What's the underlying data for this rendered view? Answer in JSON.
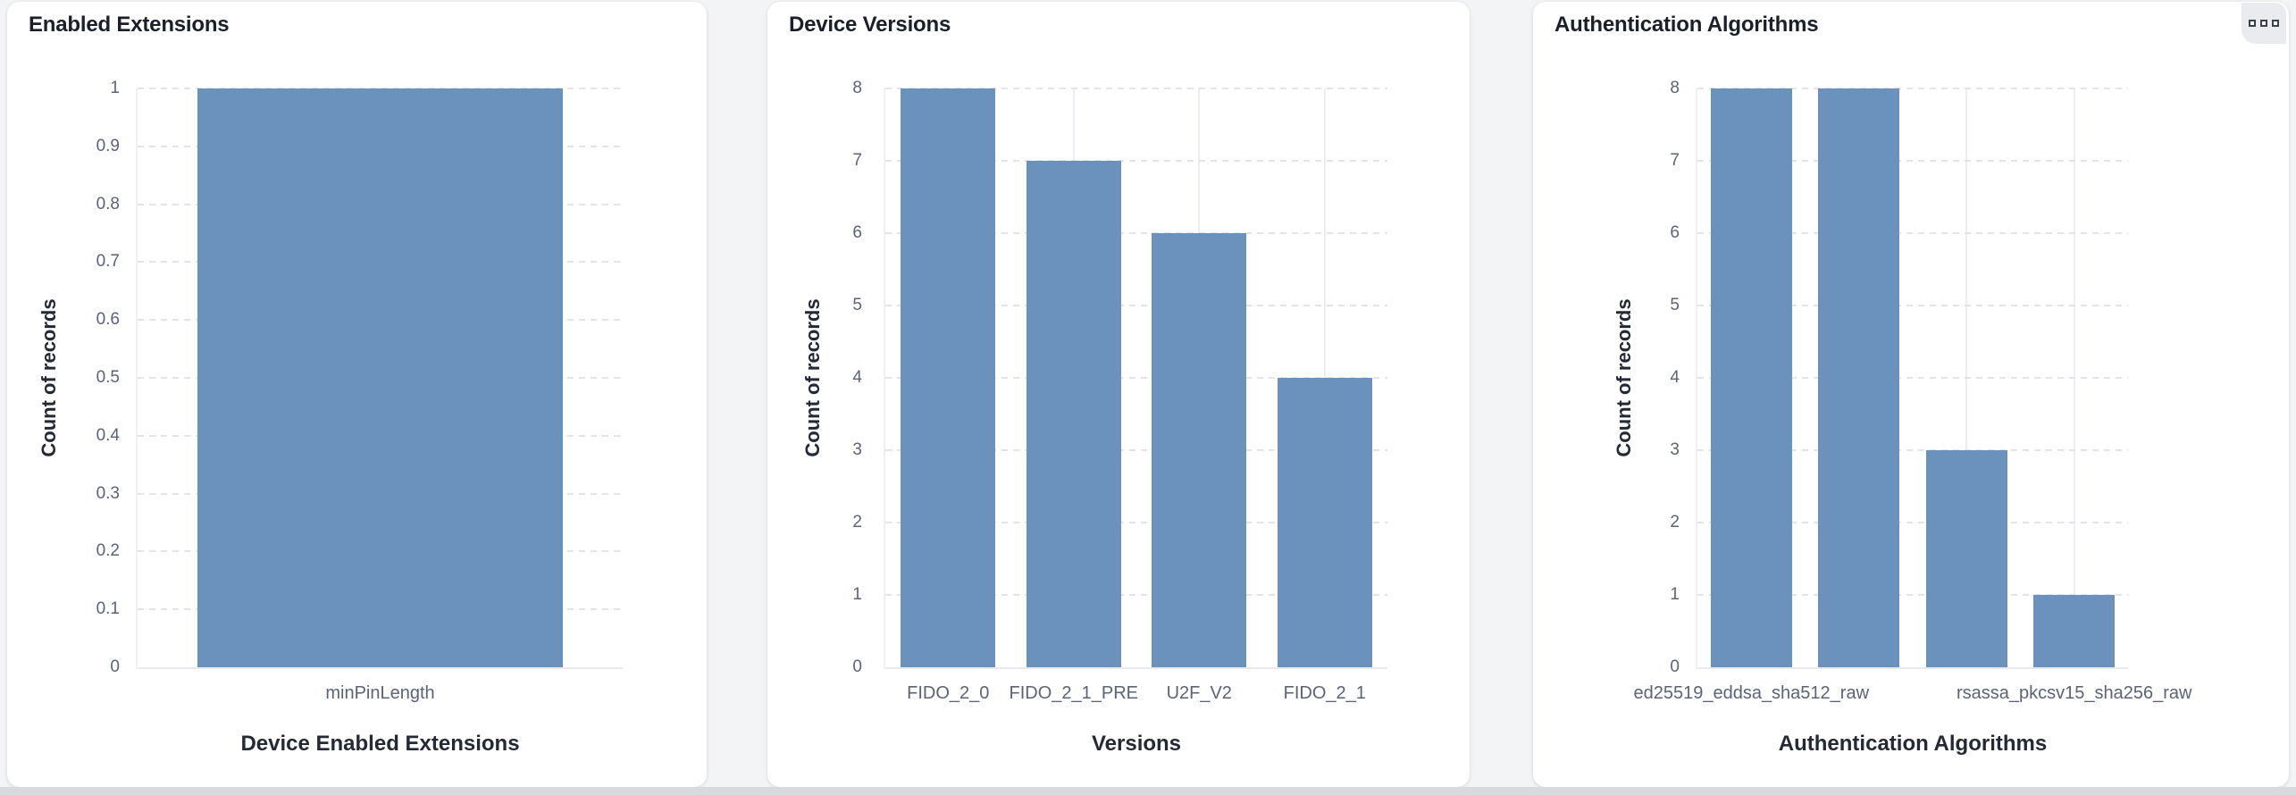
{
  "page": {
    "background_color": "#f3f4f6",
    "bottom_strip_color": "#d8dade"
  },
  "icons": {
    "panel_menu": "three-small-squares"
  },
  "cards": [
    {
      "title": "Enabled Extensions",
      "has_menu_icon": false
    },
    {
      "title": "Device Versions",
      "has_menu_icon": false
    },
    {
      "title": "Authentication Algorithms",
      "has_menu_icon": true
    }
  ],
  "chart_data": [
    {
      "type": "bar",
      "title": "Enabled Extensions",
      "categories": [
        "minPinLength"
      ],
      "values": [
        1
      ],
      "visible_x_tick_labels": [
        {
          "index": 0,
          "label": "minPinLength"
        }
      ],
      "xlabel": "Device Enabled Extensions",
      "ylabel": "Count of records",
      "ylim": [
        0,
        1
      ],
      "ytick_step": 0.1,
      "grid": true,
      "legend": "none",
      "bar_color": "#6b91bd"
    },
    {
      "type": "bar",
      "title": "Device Versions",
      "categories": [
        "FIDO_2_0",
        "FIDO_2_1_PRE",
        "U2F_V2",
        "FIDO_2_1"
      ],
      "values": [
        8,
        7,
        6,
        4
      ],
      "visible_x_tick_labels": [
        {
          "index": 0,
          "label": "FIDO_2_0"
        },
        {
          "index": 1,
          "label": "FIDO_2_1_PRE"
        },
        {
          "index": 2,
          "label": "U2F_V2"
        },
        {
          "index": 3,
          "label": "FIDO_2_1"
        }
      ],
      "xlabel": "Versions",
      "ylabel": "Count of records",
      "ylim": [
        0,
        8
      ],
      "ytick_step": 1,
      "grid": true,
      "legend": "none",
      "bar_color": "#6b91bd"
    },
    {
      "type": "bar",
      "title": "Authentication Algorithms",
      "bar_count": 4,
      "values": [
        8,
        8,
        3,
        1
      ],
      "visible_x_tick_labels": [
        {
          "index": 0,
          "label": "ed25519_eddsa_sha512_raw"
        },
        {
          "index": 3,
          "label": "rsassa_pkcsv15_sha256_raw"
        }
      ],
      "xlabel": "Authentication Algorithms",
      "ylabel": "Count of records",
      "ylim": [
        0,
        8
      ],
      "ytick_step": 1,
      "grid": true,
      "legend": "none",
      "bar_color": "#6b91bd"
    }
  ]
}
